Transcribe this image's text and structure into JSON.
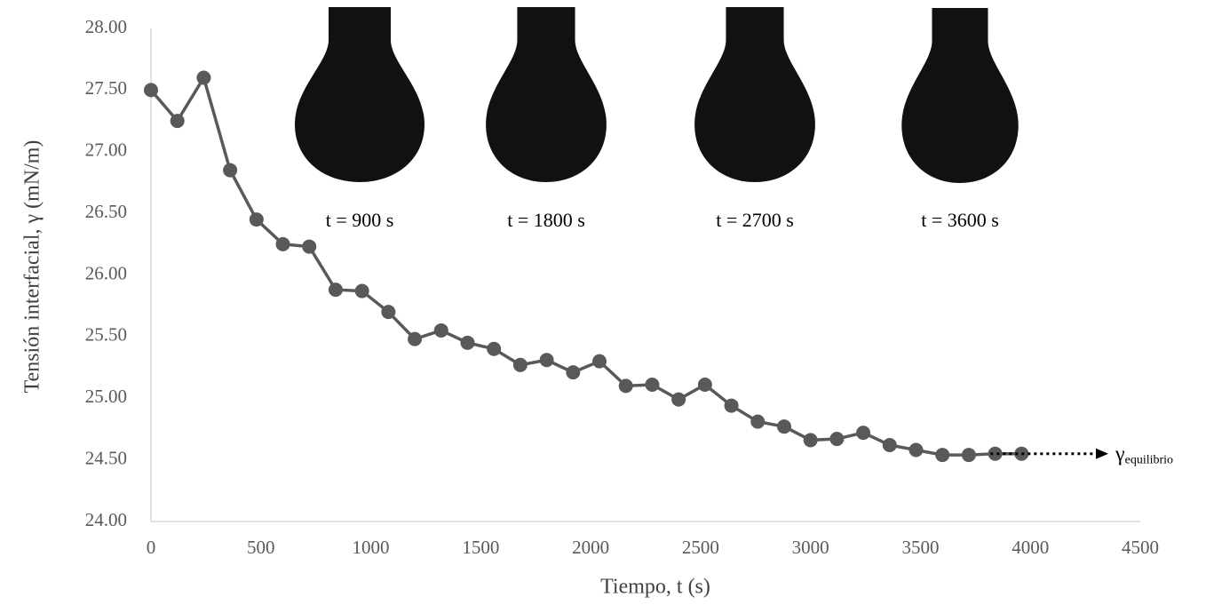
{
  "chart_data": {
    "type": "line",
    "x_label": "Tiempo, t (s)",
    "y_label": "Tensión interfacial, γ (mN/m)",
    "x": [
      0,
      120,
      240,
      360,
      480,
      600,
      720,
      840,
      960,
      1080,
      1200,
      1320,
      1440,
      1560,
      1680,
      1800,
      1920,
      2040,
      2160,
      2280,
      2400,
      2520,
      2640,
      2760,
      2880,
      3000,
      3120,
      3240,
      3360,
      3480,
      3600,
      3720,
      3840,
      3960
    ],
    "series": [
      {
        "color": "#595959",
        "values": [
          27.5,
          27.25,
          27.6,
          26.85,
          26.45,
          26.25,
          26.23,
          25.88,
          25.87,
          25.7,
          25.48,
          25.55,
          25.45,
          25.4,
          25.27,
          25.31,
          25.21,
          25.3,
          25.1,
          25.11,
          24.99,
          25.11,
          24.94,
          24.81,
          24.77,
          24.66,
          24.67,
          24.72,
          24.62,
          24.58,
          24.54,
          24.54,
          24.55,
          24.55
        ]
      }
    ],
    "xlim": [
      0,
      4500
    ],
    "xticks": [
      0,
      500,
      1000,
      1500,
      2000,
      2500,
      3000,
      3500,
      4000,
      4500
    ],
    "ylim": [
      24,
      28
    ],
    "yticks": [
      {
        "value": 24,
        "label": "24.00"
      },
      {
        "value": 24.5,
        "label": "24.50"
      },
      {
        "value": 25,
        "label": "25.00"
      },
      {
        "value": 25.5,
        "label": "25.50"
      },
      {
        "value": 26,
        "label": "26.00"
      },
      {
        "value": 26.5,
        "label": "26.50"
      },
      {
        "value": 27,
        "label": "27.00"
      },
      {
        "value": 27.5,
        "label": "27.50"
      },
      {
        "value": 28,
        "label": "28.00"
      }
    ],
    "grid": false,
    "image_labels": [
      "t = 900 s",
      "t = 1800 s",
      "t = 2700 s",
      "t = 3600 s"
    ],
    "annotation": {
      "symbol": "γ",
      "subscript": "equilibrio"
    }
  }
}
